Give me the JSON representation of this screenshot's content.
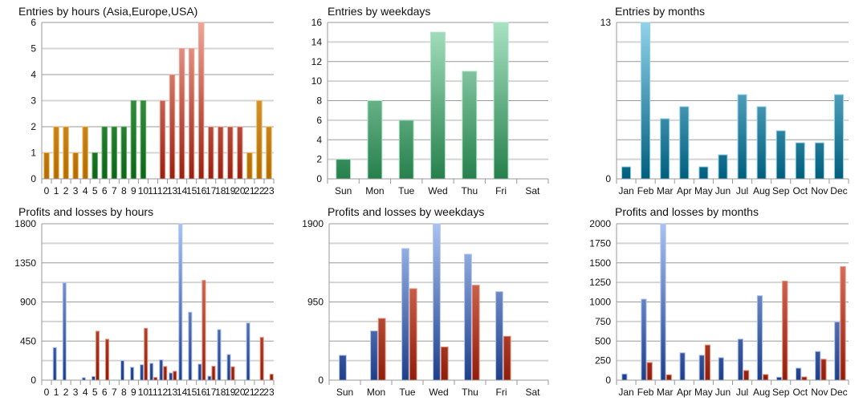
{
  "chart_data": [
    {
      "type": "bar",
      "title": "Entries by hours (Asia,Europe,USA)",
      "categories": [
        "0",
        "1",
        "2",
        "3",
        "4",
        "5",
        "6",
        "7",
        "8",
        "9",
        "10",
        "11",
        "12",
        "13",
        "14",
        "15",
        "16",
        "17",
        "18",
        "19",
        "20",
        "21",
        "22",
        "23"
      ],
      "series": [
        {
          "values": [
            1,
            2,
            2,
            1,
            2,
            1,
            2,
            2,
            2,
            3,
            3,
            0,
            3,
            4,
            5,
            5,
            6,
            2,
            2,
            2,
            2,
            1,
            3,
            2
          ]
        }
      ],
      "bar_regions": [
        "Asia",
        "Asia",
        "Asia",
        "Asia",
        "Asia",
        "Europe",
        "Europe",
        "Europe",
        "Europe",
        "Europe",
        "Europe",
        "USA",
        "USA",
        "USA",
        "USA",
        "USA",
        "USA",
        "USA",
        "USA",
        "USA",
        "USA",
        "Asia",
        "Asia",
        "Asia"
      ],
      "region_colors": {
        "Asia": [
          "#f2b555",
          "#b26c00"
        ],
        "Europe": [
          "#5fae66",
          "#0d6618"
        ],
        "USA": [
          "#f0a596",
          "#982010"
        ]
      },
      "ylim": [
        0,
        6
      ],
      "yticks": [
        0,
        1,
        2,
        3,
        4,
        5,
        6
      ],
      "grid": true
    },
    {
      "type": "bar",
      "title": "Entries by weekdays",
      "categories": [
        "Sun",
        "Mon",
        "Tue",
        "Wed",
        "Thu",
        "Fri",
        "Sat"
      ],
      "series": [
        {
          "values": [
            2,
            8,
            6,
            15,
            11,
            16,
            0
          ],
          "color": [
            "#a8e2c2",
            "#26804c"
          ]
        }
      ],
      "ylim": [
        0,
        16
      ],
      "yticks": [
        0,
        2,
        4,
        6,
        8,
        10,
        12,
        14,
        16
      ],
      "grid": true
    },
    {
      "type": "bar",
      "title": "Entries by months",
      "categories": [
        "Jan",
        "Feb",
        "Mar",
        "Apr",
        "May",
        "Jun",
        "Jul",
        "Aug",
        "Sep",
        "Oct",
        "Nov",
        "Dec"
      ],
      "series": [
        {
          "values": [
            1,
            13,
            5,
            6,
            1,
            2,
            7,
            6,
            4,
            3,
            3,
            7
          ],
          "color": [
            "#92d2ea",
            "#005f7e"
          ]
        }
      ],
      "ylim": [
        0,
        13
      ],
      "yticks": [
        0,
        13
      ],
      "grid": true
    },
    {
      "type": "bar",
      "title": "Profits and losses by hours",
      "categories": [
        "0",
        "1",
        "2",
        "3",
        "4",
        "5",
        "6",
        "7",
        "8",
        "9",
        "10",
        "11",
        "12",
        "13",
        "14",
        "15",
        "16",
        "17",
        "18",
        "19",
        "20",
        "21",
        "22",
        "23"
      ],
      "series": [
        {
          "values": [
            0,
            375,
            1120,
            0,
            28,
            43,
            0,
            0,
            225,
            148,
            178,
            194,
            234,
            83,
            1800,
            782,
            185,
            46,
            582,
            295,
            0,
            658,
            0,
            0
          ],
          "color": [
            "#aac2f2",
            "#1e3e88"
          ]
        },
        {
          "values": [
            0,
            0,
            0,
            0,
            0,
            563,
            471,
            0,
            0,
            0,
            597,
            31,
            157,
            102,
            0,
            0,
            1148,
            160,
            0,
            154,
            0,
            0,
            492,
            68
          ],
          "color": [
            "#ec8c74",
            "#8e1e0c"
          ]
        }
      ],
      "ylim": [
        0,
        1800
      ],
      "yticks": [
        0,
        450,
        900,
        1350,
        1800
      ],
      "grid": true
    },
    {
      "type": "bar",
      "title": "Profits and losses by weekdays",
      "categories": [
        "Sun",
        "Mon",
        "Tue",
        "Wed",
        "Thu",
        "Fri",
        "Sat"
      ],
      "series": [
        {
          "values": [
            302,
            598,
            1598,
            1900,
            1530,
            1075,
            0
          ],
          "color": [
            "#aac2f2",
            "#1e3e88"
          ]
        },
        {
          "values": [
            0,
            750,
            1111,
            403,
            1153,
            533,
            0
          ],
          "color": [
            "#ec8c74",
            "#8e1e0c"
          ]
        }
      ],
      "ylim": [
        0,
        1900
      ],
      "yticks": [
        0,
        950,
        1900
      ],
      "grid": true
    },
    {
      "type": "bar",
      "title": "Profits and losses by months",
      "categories": [
        "Jan",
        "Feb",
        "Mar",
        "Apr",
        "May",
        "Jun",
        "Jul",
        "Aug",
        "Sep",
        "Oct",
        "Nov",
        "Dec"
      ],
      "series": [
        {
          "values": [
            79,
            1036,
            2000,
            350,
            319,
            288,
            525,
            1080,
            38,
            154,
            367,
            744
          ],
          "color": [
            "#aac2f2",
            "#1e3e88"
          ]
        },
        {
          "values": [
            0,
            226,
            69,
            0,
            449,
            0,
            123,
            72,
            1266,
            41,
            268,
            1451
          ],
          "color": [
            "#ec8c74",
            "#8e1e0c"
          ]
        }
      ],
      "ylim": [
        0,
        2000
      ],
      "yticks": [
        0,
        250,
        500,
        750,
        1000,
        1250,
        1500,
        1750,
        2000
      ],
      "grid": true
    }
  ]
}
